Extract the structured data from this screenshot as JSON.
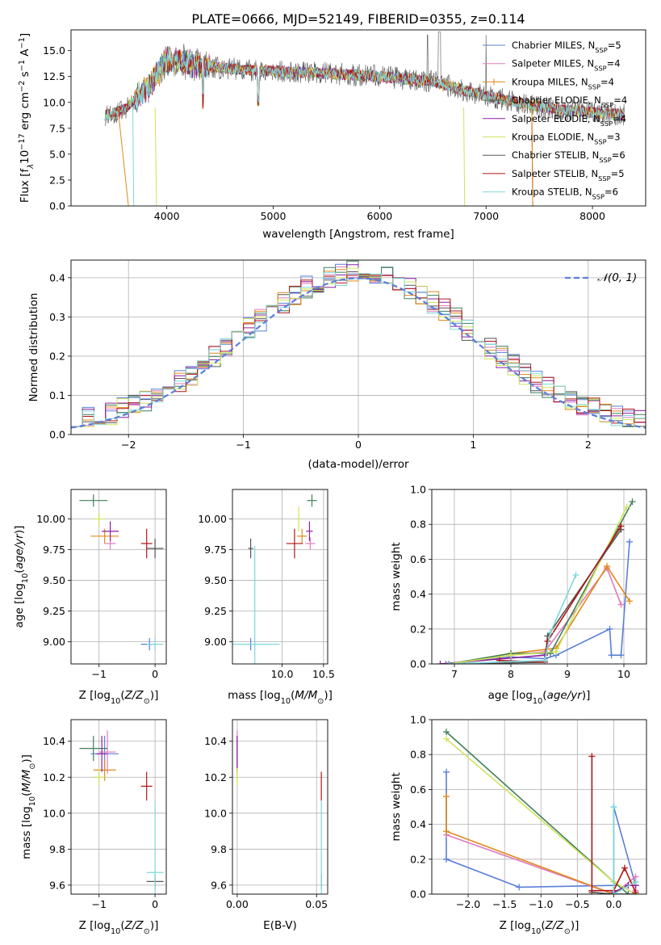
{
  "series_names": [
    "Chabrier MILES, N_{SSP}=5",
    "Salpeter MILES, N_{SSP}=4",
    "Kroupa MILES, N_{SSP}=4",
    "Chabrier ELODIE, N_{SSP}=4",
    "Salpeter ELODIE, N_{SSP}=4",
    "Kroupa ELODIE, N_{SSP}=3",
    "Chabrier STELIB, N_{SSP}=6",
    "Salpeter STELIB, N_{SSP}=5",
    "Kroupa STELIB, N_{SSP}=6"
  ],
  "series_colors": [
    "#5b7fd9",
    "#e07bbd",
    "#e08b1a",
    "#3f7f5a",
    "#8b1fa0",
    "#cfe35a",
    "#555555",
    "#b01515",
    "#7fd8d8"
  ],
  "chart_data": [
    {
      "id": "spectrum",
      "type": "line",
      "title": "PLATE=0666, MJD=52149, FIBERID=0355, z=0.114",
      "xlabel": "wavelength [Angstrom, rest frame]",
      "ylabel": "Flux [f_λ10^{-17} erg cm^{-2} s^{-1} A^{-1}]",
      "xlim": [
        3100,
        8500
      ],
      "ylim": [
        0,
        17
      ],
      "xticks": [
        4000,
        5000,
        6000,
        7000,
        8000
      ],
      "yticks": [
        0.0,
        2.5,
        5.0,
        7.5,
        10.0,
        12.5,
        15.0
      ],
      "grid": false,
      "legend": "upper right",
      "continuum_x": [
        3450,
        3600,
        3700,
        3800,
        3900,
        4000,
        4200,
        4500,
        5000,
        5500,
        6000,
        6500,
        7000,
        7500,
        8000,
        8300
      ],
      "continuum_y": [
        8.8,
        9.3,
        10.3,
        11.3,
        12.5,
        14.0,
        13.8,
        13.3,
        13.0,
        12.8,
        12.5,
        12.0,
        10.6,
        9.6,
        9.0,
        8.8
      ],
      "observed_x": [
        3420,
        3500,
        3600,
        3700,
        3800,
        3900,
        4000,
        4100,
        4200,
        4340,
        4500,
        4700,
        4861,
        5000,
        5200,
        5500,
        5800,
        6000,
        6200,
        6563,
        6700,
        6900,
        7100,
        7300,
        7500,
        7700,
        8000,
        8300
      ],
      "observed_y": [
        9.5,
        8.5,
        9.8,
        10.5,
        11.5,
        13.0,
        15.5,
        14.0,
        14.5,
        11.5,
        14.0,
        13.5,
        9.5,
        13.5,
        13.0,
        12.8,
        12.5,
        12.5,
        12.0,
        16.5,
        12.0,
        11.0,
        10.5,
        10.0,
        9.5,
        9.5,
        9.2,
        8.5
      ]
    },
    {
      "id": "residuals",
      "type": "line",
      "xlabel": "(data-model)/error",
      "ylabel": "Normed distribution",
      "xlim": [
        -2.5,
        2.5
      ],
      "ylim": [
        0,
        0.445
      ],
      "xticks": [
        -2,
        -1,
        0,
        1,
        2
      ],
      "yticks": [
        0.0,
        0.1,
        0.2,
        0.3,
        0.4
      ],
      "grid": true,
      "legend": "upper right",
      "reference_label": "𝒩(0, 1)",
      "reference_color": "#5b7fd9"
    },
    {
      "id": "age_vs_Z",
      "type": "scatter",
      "xlabel": "Z [log10(Z/Z⊙)]",
      "ylabel": "age  [log10(age/yr)]",
      "xlim": [
        -1.5,
        0.2
      ],
      "ylim": [
        8.82,
        10.24
      ],
      "xticks": [
        -1,
        0
      ],
      "yticks": [
        9.0,
        9.25,
        9.5,
        9.75,
        10.0
      ],
      "grid": true,
      "x": [
        -0.1,
        -0.8,
        -0.9,
        -1.1,
        -0.8,
        -1.0,
        0.0,
        -0.15,
        0.0
      ],
      "xerr": [
        0.15,
        0.1,
        0.25,
        0.25,
        0.15,
        0.1,
        0.15,
        0.1,
        0.15
      ],
      "y": [
        8.98,
        9.8,
        9.86,
        10.15,
        9.9,
        10.0,
        9.76,
        9.8,
        8.98
      ],
      "yerr": [
        0.05,
        0.05,
        0.06,
        0.05,
        0.08,
        0.05,
        0.08,
        0.12,
        0.05
      ]
    },
    {
      "id": "age_vs_mass",
      "type": "scatter",
      "xlabel": "mass [log10(M/M⊙)]",
      "ylabel": "",
      "xlim": [
        9.4,
        10.55
      ],
      "ylim": [
        8.82,
        10.24
      ],
      "xticks": [
        10.0,
        10.5
      ],
      "yticks": [
        9.0,
        9.25,
        9.5,
        9.75,
        10.0
      ],
      "grid": true,
      "x": [
        9.62,
        10.34,
        10.24,
        10.36,
        10.33,
        10.2,
        9.62,
        10.15,
        9.67
      ],
      "xerr": [
        0.02,
        0.06,
        0.06,
        0.06,
        0.04,
        0.02,
        0.03,
        0.1,
        0.3
      ],
      "y": [
        8.98,
        9.8,
        9.86,
        10.15,
        9.9,
        10.0,
        9.76,
        9.8,
        8.98
      ],
      "yerr": [
        0.05,
        0.05,
        0.06,
        0.05,
        0.08,
        0.1,
        0.08,
        0.12,
        0.8
      ]
    },
    {
      "id": "mass_weight_vs_age",
      "type": "line",
      "xlabel": "age  [log10(age/yr)]",
      "ylabel": "mass weight",
      "xlim": [
        6.6,
        10.4
      ],
      "ylim": [
        0,
        1.0
      ],
      "xticks": [
        7,
        8,
        9,
        10
      ],
      "yticks": [
        0.0,
        0.2,
        0.4,
        0.6,
        0.8,
        1.0
      ],
      "grid": true,
      "series": [
        {
          "x": [
            6.85,
            8.0,
            8.6,
            8.8,
            9.75,
            9.78,
            9.95,
            10.1
          ],
          "y": [
            0.0,
            0.04,
            0.03,
            0.05,
            0.2,
            0.05,
            0.05,
            0.7
          ]
        },
        {
          "x": [
            6.9,
            8.0,
            8.6,
            9.7,
            9.95
          ],
          "y": [
            0.0,
            0.05,
            0.07,
            0.55,
            0.34
          ]
        },
        {
          "x": [
            6.9,
            8.0,
            8.8,
            9.7,
            10.1
          ],
          "y": [
            0.0,
            0.06,
            0.09,
            0.56,
            0.36
          ]
        },
        {
          "x": [
            6.9,
            8.0,
            8.7,
            10.15
          ],
          "y": [
            0.0,
            0.06,
            0.06,
            0.93
          ]
        },
        {
          "x": [
            6.75,
            8.6
          ],
          "y": [
            0.0,
            0.05
          ]
        },
        {
          "x": [
            6.9,
            8.0,
            8.8,
            10.05
          ],
          "y": [
            0.0,
            0.05,
            0.07,
            0.9
          ]
        },
        {
          "x": [
            6.9,
            8.6,
            8.65,
            9.95
          ],
          "y": [
            0.0,
            0.01,
            0.16,
            0.77
          ]
        },
        {
          "x": [
            7.8,
            8.6,
            8.65,
            9.95
          ],
          "y": [
            0.02,
            0.01,
            0.13,
            0.79
          ]
        },
        {
          "x": [
            6.9,
            8.6,
            8.7,
            9.15
          ],
          "y": [
            0.0,
            0.02,
            0.18,
            0.51
          ]
        }
      ]
    },
    {
      "id": "mass_vs_Z",
      "type": "scatter",
      "xlabel": "Z [log10(Z/Z⊙)]",
      "ylabel": "mass [log10(M/M⊙)]",
      "xlim": [
        -1.5,
        0.2
      ],
      "ylim": [
        9.55,
        10.52
      ],
      "xticks": [
        -1,
        0
      ],
      "yticks": [
        9.6,
        9.8,
        10.0,
        10.2,
        10.4
      ],
      "grid": true,
      "x": [
        -0.9,
        -0.85,
        -0.9,
        -1.1,
        -0.95,
        -1.0,
        0.0,
        -0.15,
        0.0
      ],
      "xerr": [
        0.25,
        0.15,
        0.2,
        0.25,
        0.1,
        0.1,
        0.15,
        0.1,
        0.15
      ],
      "y": [
        10.33,
        10.34,
        10.24,
        10.36,
        10.33,
        10.2,
        9.62,
        10.15,
        9.67
      ],
      "yerr": [
        0.1,
        0.12,
        0.06,
        0.07,
        0.1,
        0.05,
        0.04,
        0.08,
        0.4
      ]
    },
    {
      "id": "mass_vs_EBV",
      "type": "scatter",
      "xlabel": "E(B-V)",
      "ylabel": "",
      "xlim": [
        -0.003,
        0.057
      ],
      "ylim": [
        9.55,
        10.52
      ],
      "xticks": [
        0.0,
        0.05
      ],
      "yticks": [
        9.6,
        9.8,
        10.0,
        10.2,
        10.4
      ],
      "grid": true,
      "x": [
        0.0,
        0.0,
        0.0,
        0.0,
        0.0,
        0.0,
        0.053,
        0.053,
        0.053
      ],
      "y": [
        10.33,
        10.34,
        10.24,
        10.36,
        10.33,
        10.2,
        9.62,
        10.15,
        9.67
      ],
      "yerr": [
        0.1,
        0.12,
        0.06,
        0.07,
        0.1,
        0.05,
        0.04,
        0.08,
        0.4
      ]
    },
    {
      "id": "mass_weight_vs_Z",
      "type": "line",
      "xlabel": "Z [log10(Z/Z⊙)]",
      "ylabel": "mass weight",
      "xlim": [
        -2.5,
        0.45
      ],
      "ylim": [
        0,
        1.0
      ],
      "xticks": [
        -2.0,
        -1.5,
        -1.0,
        -0.5,
        0.0
      ],
      "yticks": [
        0.0,
        0.2,
        0.4,
        0.6,
        0.8,
        1.0
      ],
      "grid": true,
      "series": [
        {
          "x": [
            -2.3,
            -2.3,
            -1.3,
            0.0,
            0.0,
            0.3
          ],
          "y": [
            0.7,
            0.2,
            0.04,
            0.05,
            0.5,
            0.05
          ]
        },
        {
          "x": [
            -2.3,
            0.0,
            0.3,
            0.3
          ],
          "y": [
            0.34,
            0.0,
            0.1,
            0.02
          ]
        },
        {
          "x": [
            -2.3,
            -2.3,
            0.0,
            0.3
          ],
          "y": [
            0.56,
            0.36,
            0.0,
            0.07
          ]
        },
        {
          "x": [
            -2.3,
            0.0,
            0.2
          ],
          "y": [
            0.93,
            0.07,
            0.0
          ]
        },
        {
          "x": [
            0.0,
            0.2,
            0.3
          ],
          "y": [
            0.01,
            0.05,
            0.05
          ]
        },
        {
          "x": [
            -2.3,
            0.0,
            0.3
          ],
          "y": [
            0.89,
            0.07,
            0.0
          ]
        },
        {
          "x": [
            -0.3,
            0.0,
            0.3
          ],
          "y": [
            0.01,
            0.0,
            0.0
          ]
        },
        {
          "x": [
            -0.3,
            -0.3,
            0.0,
            0.15,
            0.3
          ],
          "y": [
            0.79,
            0.02,
            0.02,
            0.15,
            0.01
          ]
        },
        {
          "x": [
            0.0,
            0.0,
            0.3
          ],
          "y": [
            0.5,
            0.0,
            0.07
          ]
        }
      ]
    }
  ]
}
